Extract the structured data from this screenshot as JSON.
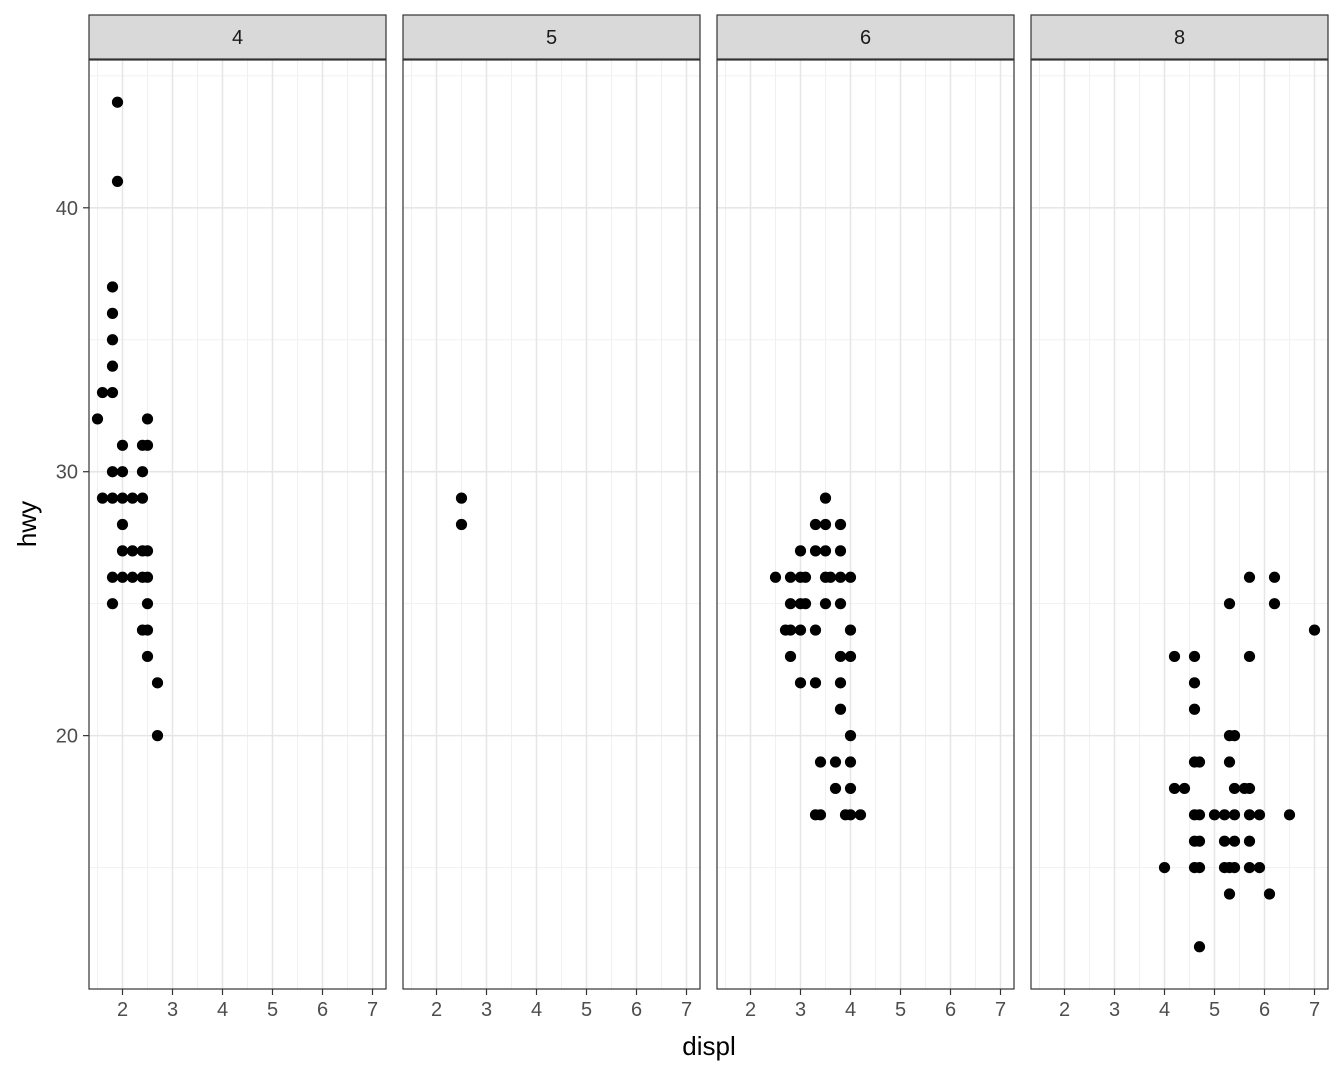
{
  "chart_data": {
    "type": "scatter",
    "xlabel": "displ",
    "ylabel": "hwy",
    "xlim": [
      1.33,
      7.27
    ],
    "ylim": [
      10.4,
      45.6
    ],
    "x_ticks": [
      "2",
      "3",
      "4",
      "5",
      "6",
      "7"
    ],
    "x_tick_values": [
      2,
      3,
      4,
      5,
      6,
      7
    ],
    "y_ticks": [
      "20",
      "30",
      "40"
    ],
    "y_tick_values": [
      20,
      30,
      40
    ],
    "grid": true,
    "facet_variable_values": [
      "4",
      "5",
      "6",
      "8"
    ],
    "point_color": "#000000",
    "panels": [
      {
        "label": "4",
        "points": [
          [
            1.9,
            44
          ],
          [
            1.9,
            41
          ],
          [
            1.8,
            37
          ],
          [
            1.8,
            36
          ],
          [
            1.8,
            35
          ],
          [
            1.8,
            34
          ],
          [
            1.6,
            33
          ],
          [
            1.8,
            33
          ],
          [
            1.5,
            32
          ],
          [
            2.5,
            32
          ],
          [
            2.0,
            31
          ],
          [
            2.4,
            31
          ],
          [
            2.5,
            31
          ],
          [
            1.8,
            30
          ],
          [
            2.0,
            30
          ],
          [
            2.4,
            30
          ],
          [
            1.6,
            29
          ],
          [
            1.8,
            29
          ],
          [
            2.0,
            29
          ],
          [
            2.2,
            29
          ],
          [
            2.4,
            29
          ],
          [
            2.0,
            28
          ],
          [
            2.0,
            27
          ],
          [
            2.2,
            27
          ],
          [
            2.4,
            27
          ],
          [
            2.5,
            27
          ],
          [
            1.8,
            26
          ],
          [
            2.0,
            26
          ],
          [
            2.2,
            26
          ],
          [
            2.4,
            26
          ],
          [
            2.5,
            26
          ],
          [
            1.8,
            25
          ],
          [
            2.5,
            25
          ],
          [
            2.4,
            24
          ],
          [
            2.5,
            24
          ],
          [
            2.5,
            23
          ],
          [
            2.7,
            22
          ],
          [
            2.7,
            20
          ]
        ]
      },
      {
        "label": "5",
        "points": [
          [
            2.5,
            29
          ],
          [
            2.5,
            28
          ]
        ]
      },
      {
        "label": "6",
        "points": [
          [
            3.5,
            29
          ],
          [
            3.3,
            28
          ],
          [
            3.5,
            28
          ],
          [
            3.8,
            28
          ],
          [
            3.0,
            27
          ],
          [
            3.3,
            27
          ],
          [
            3.5,
            27
          ],
          [
            3.8,
            27
          ],
          [
            2.5,
            26
          ],
          [
            2.8,
            26
          ],
          [
            3.0,
            26
          ],
          [
            3.1,
            26
          ],
          [
            3.5,
            26
          ],
          [
            3.6,
            26
          ],
          [
            3.8,
            26
          ],
          [
            4.0,
            26
          ],
          [
            2.8,
            25
          ],
          [
            3.0,
            25
          ],
          [
            3.1,
            25
          ],
          [
            3.5,
            25
          ],
          [
            3.8,
            25
          ],
          [
            2.7,
            24
          ],
          [
            2.8,
            24
          ],
          [
            3.0,
            24
          ],
          [
            3.3,
            24
          ],
          [
            4.0,
            24
          ],
          [
            2.8,
            23
          ],
          [
            3.8,
            23
          ],
          [
            4.0,
            23
          ],
          [
            3.0,
            22
          ],
          [
            3.3,
            22
          ],
          [
            3.8,
            22
          ],
          [
            3.8,
            21
          ],
          [
            4.0,
            20
          ],
          [
            3.4,
            19
          ],
          [
            3.7,
            19
          ],
          [
            4.0,
            19
          ],
          [
            3.7,
            18
          ],
          [
            4.0,
            18
          ],
          [
            3.3,
            17
          ],
          [
            3.4,
            17
          ],
          [
            3.9,
            17
          ],
          [
            4.0,
            17
          ],
          [
            4.2,
            17
          ]
        ]
      },
      {
        "label": "8",
        "points": [
          [
            5.7,
            26
          ],
          [
            6.2,
            26
          ],
          [
            5.3,
            25
          ],
          [
            6.2,
            25
          ],
          [
            7.0,
            24
          ],
          [
            4.2,
            23
          ],
          [
            4.6,
            23
          ],
          [
            5.7,
            23
          ],
          [
            4.6,
            22
          ],
          [
            4.6,
            21
          ],
          [
            5.3,
            20
          ],
          [
            5.4,
            20
          ],
          [
            4.6,
            19
          ],
          [
            4.7,
            19
          ],
          [
            5.3,
            19
          ],
          [
            4.2,
            18
          ],
          [
            4.4,
            18
          ],
          [
            5.4,
            18
          ],
          [
            5.6,
            18
          ],
          [
            5.7,
            18
          ],
          [
            4.6,
            17
          ],
          [
            4.7,
            17
          ],
          [
            5.0,
            17
          ],
          [
            5.2,
            17
          ],
          [
            5.4,
            17
          ],
          [
            5.7,
            17
          ],
          [
            5.9,
            17
          ],
          [
            6.5,
            17
          ],
          [
            4.6,
            16
          ],
          [
            4.7,
            16
          ],
          [
            5.2,
            16
          ],
          [
            5.4,
            16
          ],
          [
            5.7,
            16
          ],
          [
            4.0,
            15
          ],
          [
            4.6,
            15
          ],
          [
            4.7,
            15
          ],
          [
            5.2,
            15
          ],
          [
            5.3,
            15
          ],
          [
            5.4,
            15
          ],
          [
            5.7,
            15
          ],
          [
            5.9,
            15
          ],
          [
            5.3,
            14
          ],
          [
            6.1,
            14
          ],
          [
            4.7,
            12
          ]
        ]
      }
    ]
  }
}
